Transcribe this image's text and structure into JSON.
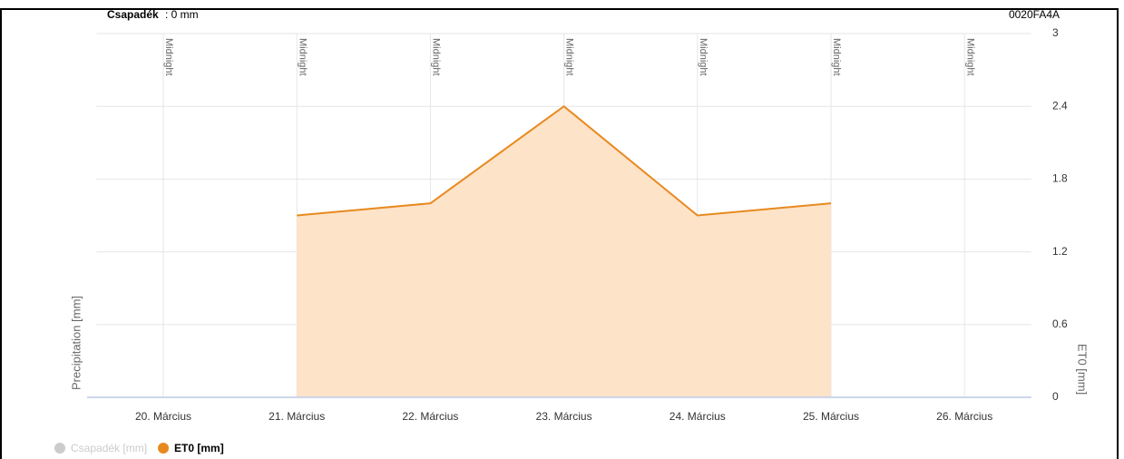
{
  "chart_data": {
    "type": "area",
    "title": "0020FA4A",
    "subtitle_label": "Csapadék",
    "subtitle_text": ": 0 mm",
    "ylabel": "Precipitation [mm]",
    "y2label": "ET0 [mm]",
    "annotations": [
      "Midnight",
      "Midnight",
      "Midnight",
      "Midnight",
      "Midnight",
      "Midnight",
      "Midnight"
    ],
    "categories": [
      "20. Március",
      "21. Március",
      "22. Március",
      "23. Március",
      "24. Március",
      "25. Március",
      "26. Március"
    ],
    "series": [
      {
        "name": "Csapadék [mm]",
        "color": "#cccccc",
        "values": [
          null,
          null,
          null,
          null,
          null,
          null,
          null
        ],
        "visible": false
      },
      {
        "name": "ET0 [mm]",
        "color": "#e8891e",
        "fill": "#fde3c8",
        "axis": "y2",
        "values": [
          null,
          1.5,
          1.6,
          2.4,
          1.5,
          1.6,
          null
        ],
        "visible": true
      }
    ],
    "y2lim": [
      0,
      3
    ],
    "y2ticks": [
      0,
      0.6,
      1.2,
      1.8,
      2.4,
      3
    ],
    "grid": true
  }
}
